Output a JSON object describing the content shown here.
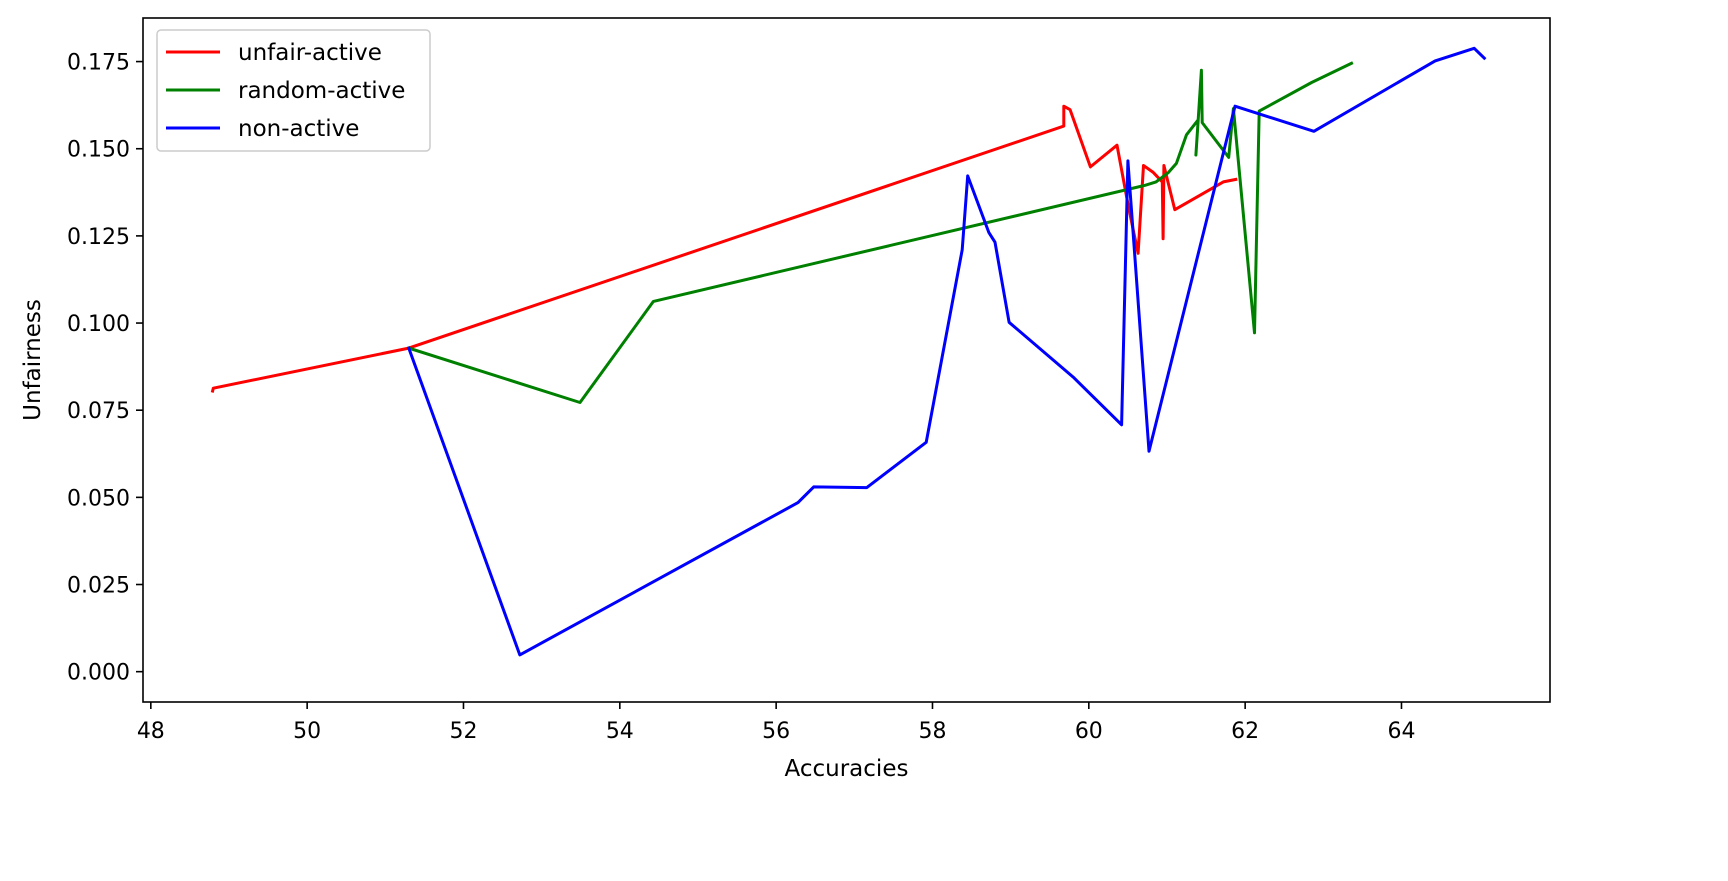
{
  "chart_data": {
    "type": "line",
    "title": "",
    "xlabel": "Accuracies",
    "ylabel": "Unfairness",
    "xlim": [
      47.9,
      65.9
    ],
    "ylim": [
      -0.0087,
      0.1875
    ],
    "xticks": [
      48,
      50,
      52,
      54,
      56,
      58,
      60,
      62,
      64
    ],
    "yticks": [
      0.0,
      0.025,
      0.05,
      0.075,
      0.1,
      0.125,
      0.15,
      0.175
    ],
    "xtick_labels": [
      "48",
      "50",
      "52",
      "54",
      "56",
      "58",
      "60",
      "62",
      "64"
    ],
    "ytick_labels": [
      "0.000",
      "0.025",
      "0.050",
      "0.075",
      "0.100",
      "0.125",
      "0.150",
      "0.175"
    ],
    "grid": false,
    "legend": "upper-left",
    "series": [
      {
        "name": "unfair-active",
        "color": "#ff0000",
        "points": [
          [
            48.79,
            0.0805
          ],
          [
            48.8,
            0.0813
          ],
          [
            51.3,
            0.0928
          ],
          [
            59.68,
            0.1565
          ],
          [
            59.68,
            0.1622
          ],
          [
            59.76,
            0.1612
          ],
          [
            60.02,
            0.1448
          ],
          [
            60.36,
            0.151
          ],
          [
            60.51,
            0.133
          ],
          [
            60.63,
            0.12
          ],
          [
            60.7,
            0.1452
          ],
          [
            60.82,
            0.1433
          ],
          [
            60.94,
            0.1405
          ],
          [
            60.95,
            0.1242
          ],
          [
            60.96,
            0.1452
          ],
          [
            61.1,
            0.1325
          ],
          [
            61.72,
            0.1405
          ],
          [
            61.88,
            0.1412
          ]
        ]
      },
      {
        "name": "random-active",
        "color": "#008000",
        "points": [
          [
            51.3,
            0.0928
          ],
          [
            53.49,
            0.0772
          ],
          [
            54.43,
            0.1062
          ],
          [
            60.72,
            0.1395
          ],
          [
            60.86,
            0.1405
          ],
          [
            61.02,
            0.1432
          ],
          [
            61.12,
            0.1458
          ],
          [
            61.25,
            0.154
          ],
          [
            61.4,
            0.1583
          ],
          [
            61.37,
            0.1482
          ],
          [
            61.44,
            0.1725
          ],
          [
            61.45,
            0.1575
          ],
          [
            61.79,
            0.1475
          ],
          [
            61.85,
            0.1615
          ],
          [
            62.12,
            0.0972
          ],
          [
            62.18,
            0.1608
          ],
          [
            62.85,
            0.169
          ],
          [
            63.36,
            0.1745
          ]
        ]
      },
      {
        "name": "non-active",
        "color": "#0000ff",
        "points": [
          [
            51.3,
            0.0928
          ],
          [
            52.72,
            0.0048
          ],
          [
            56.28,
            0.0485
          ],
          [
            56.48,
            0.053
          ],
          [
            57.16,
            0.0528
          ],
          [
            57.92,
            0.0658
          ],
          [
            58.38,
            0.121
          ],
          [
            58.45,
            0.1422
          ],
          [
            58.72,
            0.126
          ],
          [
            58.8,
            0.1232
          ],
          [
            58.98,
            0.1002
          ],
          [
            59.8,
            0.0845
          ],
          [
            60.42,
            0.0708
          ],
          [
            60.5,
            0.1465
          ],
          [
            60.77,
            0.0632
          ],
          [
            61.87,
            0.1622
          ],
          [
            62.88,
            0.155
          ],
          [
            64.43,
            0.1752
          ],
          [
            64.93,
            0.1788
          ],
          [
            65.06,
            0.176
          ]
        ]
      }
    ]
  }
}
